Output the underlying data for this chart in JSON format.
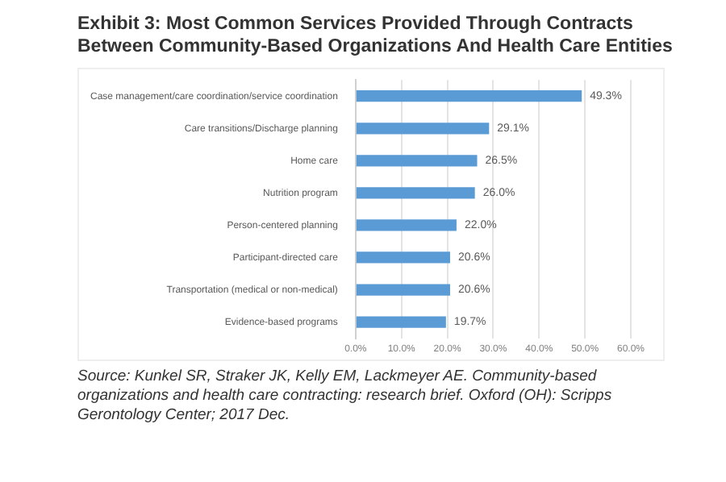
{
  "chart_data": {
    "type": "bar",
    "title": "Exhibit 3: Most Common Services Provided Through Contracts Between Community-Based Organizations And Health Care Entities",
    "orientation": "horizontal",
    "categories": [
      "Case management/care coordination/service coordination",
      "Care transitions/Discharge planning",
      "Home care",
      "Nutrition program",
      "Person-centered planning",
      "Participant-directed care",
      "Transportation (medical or non-medical)",
      "Evidence-based programs"
    ],
    "values": [
      49.3,
      29.1,
      26.5,
      26.0,
      22.0,
      20.6,
      20.6,
      19.7
    ],
    "value_labels": [
      "49.3%",
      "29.1%",
      "26.5%",
      "26.0%",
      "22.0%",
      "20.6%",
      "20.6%",
      "19.7%"
    ],
    "color": "#5b9bd5",
    "xlim": [
      0,
      60
    ],
    "xticks": [
      {
        "value": 0,
        "label": "0.0%"
      },
      {
        "value": 10,
        "label": "10.0%"
      },
      {
        "value": 20,
        "label": "20.0%"
      },
      {
        "value": 30,
        "label": "30.0%"
      },
      {
        "value": 40,
        "label": "40.0%"
      },
      {
        "value": 50,
        "label": "50.0%"
      },
      {
        "value": 60,
        "label": "60.0%"
      }
    ],
    "grid": "x",
    "legend": false,
    "annotations": [
      "Source: Kunkel SR, Straker JK, Kelly EM, Lackmeyer AE. Community-based organizations and health care contracting: research brief. Oxford (OH): Scripps Gerontology Center; 2017 Dec."
    ]
  }
}
